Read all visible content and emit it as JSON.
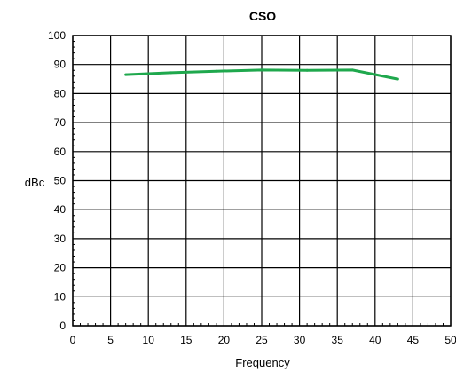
{
  "chart_data": {
    "type": "line",
    "title": "CSO",
    "xlabel": "Frequency",
    "ylabel": "dBc",
    "xlim": [
      0,
      50
    ],
    "ylim": [
      0,
      100
    ],
    "x_ticks": [
      0,
      5,
      10,
      15,
      20,
      25,
      30,
      35,
      40,
      45,
      50
    ],
    "y_ticks": [
      0,
      10,
      20,
      30,
      40,
      50,
      60,
      70,
      80,
      90,
      100
    ],
    "grid": true,
    "legend": "none",
    "series": [
      {
        "color": "#1fa84d",
        "x": [
          7,
          13,
          19,
          25,
          31,
          37,
          43
        ],
        "y": [
          86.5,
          87.2,
          87.7,
          88.1,
          88.0,
          88.1,
          85.0
        ]
      }
    ]
  }
}
